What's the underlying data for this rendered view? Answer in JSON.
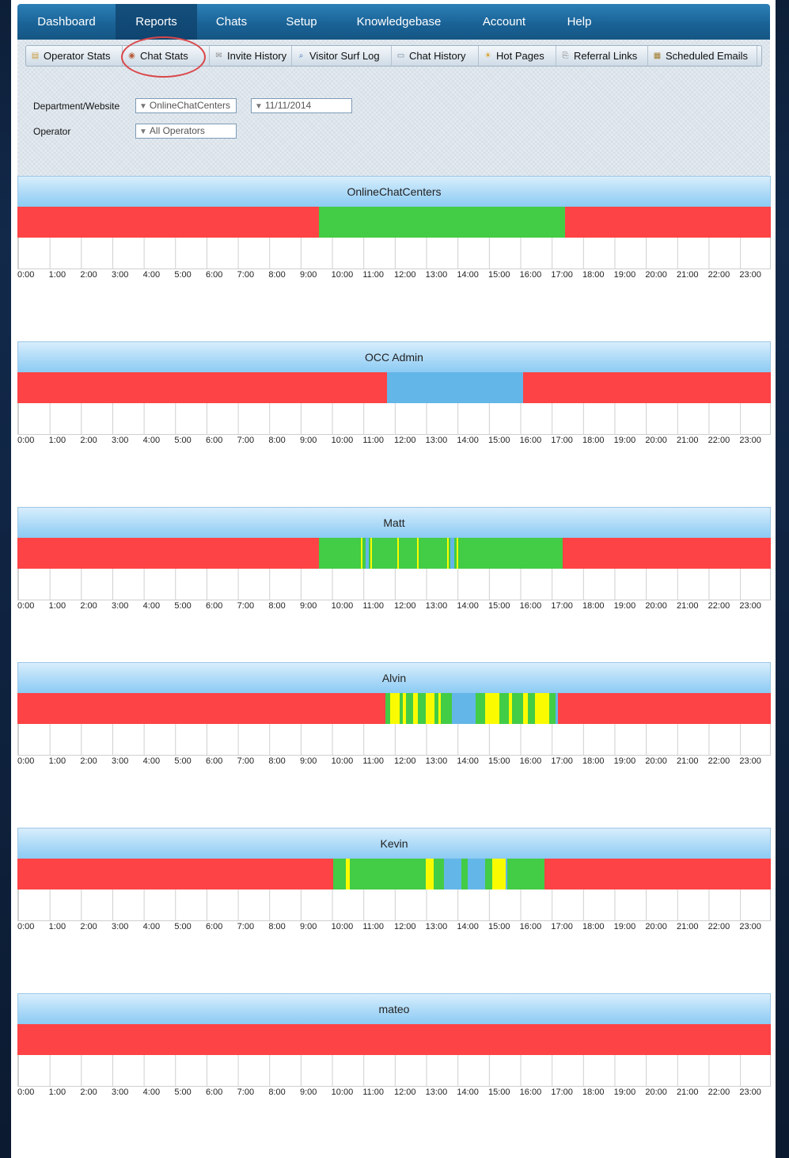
{
  "topnav": {
    "items": [
      "Dashboard",
      "Reports",
      "Chats",
      "Setup",
      "Knowledgebase",
      "Account",
      "Help"
    ],
    "active": "Reports"
  },
  "subnav": {
    "items": [
      {
        "label": "Operator Stats",
        "icon": "operator-stats-icon"
      },
      {
        "label": "Chat Stats",
        "icon": "chat-stats-icon"
      },
      {
        "label": "Invite History",
        "icon": "invite-history-icon"
      },
      {
        "label": "Visitor Surf Log",
        "icon": "visitor-surf-log-icon"
      },
      {
        "label": "Chat History",
        "icon": "chat-history-icon"
      },
      {
        "label": "Hot Pages",
        "icon": "hot-pages-icon"
      },
      {
        "label": "Referral Links",
        "icon": "referral-links-icon"
      },
      {
        "label": "Scheduled Emails",
        "icon": "scheduled-emails-icon"
      }
    ],
    "highlighted": "Chat Stats"
  },
  "filters": {
    "department_label": "Department/Website",
    "department_value": "OnlineChatCenters",
    "date_value": "11/11/2014",
    "operator_label": "Operator",
    "operator_value": "All Operators"
  },
  "hours": [
    "0:00",
    "1:00",
    "2:00",
    "3:00",
    "4:00",
    "5:00",
    "6:00",
    "7:00",
    "8:00",
    "9:00",
    "10:00",
    "11:00",
    "12:00",
    "13:00",
    "14:00",
    "15:00",
    "16:00",
    "17:00",
    "18:00",
    "19:00",
    "20:00",
    "21:00",
    "22:00",
    "23:00"
  ],
  "colors": {
    "offline": "#fd4345",
    "online": "#43cc45",
    "away": "#63b6e8",
    "chatting": "#fbfb00"
  },
  "timelines": [
    {
      "name": "OnlineChatCenters",
      "segments": [
        {
          "start": 9.6,
          "end": 17.45,
          "status": "online"
        }
      ]
    },
    {
      "name": "OCC Admin",
      "segments": [
        {
          "start": 11.78,
          "end": 16.1,
          "status": "away"
        }
      ]
    },
    {
      "name": "Matt",
      "segments": [
        {
          "start": 9.6,
          "end": 17.38,
          "status": "online"
        },
        {
          "start": 10.93,
          "end": 10.98,
          "status": "chatting"
        },
        {
          "start": 11.08,
          "end": 11.2,
          "status": "away"
        },
        {
          "start": 11.25,
          "end": 11.3,
          "status": "chatting"
        },
        {
          "start": 12.1,
          "end": 12.15,
          "status": "chatting"
        },
        {
          "start": 12.72,
          "end": 12.76,
          "status": "chatting"
        },
        {
          "start": 13.7,
          "end": 13.74,
          "status": "chatting"
        },
        {
          "start": 13.8,
          "end": 13.92,
          "status": "away"
        },
        {
          "start": 13.98,
          "end": 14.03,
          "status": "chatting"
        }
      ]
    },
    {
      "name": "Alvin",
      "segments": [
        {
          "start": 11.73,
          "end": 17.22,
          "status": "online"
        },
        {
          "start": 11.88,
          "end": 12.18,
          "status": "chatting"
        },
        {
          "start": 12.28,
          "end": 12.38,
          "status": "chatting"
        },
        {
          "start": 12.6,
          "end": 12.75,
          "status": "chatting"
        },
        {
          "start": 13.0,
          "end": 13.28,
          "status": "chatting"
        },
        {
          "start": 13.42,
          "end": 13.5,
          "status": "chatting"
        },
        {
          "start": 13.85,
          "end": 14.6,
          "status": "away"
        },
        {
          "start": 14.9,
          "end": 15.35,
          "status": "chatting"
        },
        {
          "start": 15.65,
          "end": 15.75,
          "status": "chatting"
        },
        {
          "start": 16.1,
          "end": 16.25,
          "status": "chatting"
        },
        {
          "start": 16.48,
          "end": 16.93,
          "status": "chatting"
        },
        {
          "start": 17.15,
          "end": 17.22,
          "status": "away"
        }
      ]
    },
    {
      "name": "Kevin",
      "segments": [
        {
          "start": 10.05,
          "end": 16.78,
          "status": "online"
        },
        {
          "start": 10.47,
          "end": 10.6,
          "status": "chatting"
        },
        {
          "start": 13.0,
          "end": 13.27,
          "status": "chatting"
        },
        {
          "start": 13.6,
          "end": 14.15,
          "status": "away"
        },
        {
          "start": 14.35,
          "end": 14.9,
          "status": "away"
        },
        {
          "start": 15.12,
          "end": 15.55,
          "status": "chatting"
        },
        {
          "start": 15.55,
          "end": 15.6,
          "status": "away"
        }
      ]
    },
    {
      "name": "mateo",
      "segments": []
    }
  ]
}
